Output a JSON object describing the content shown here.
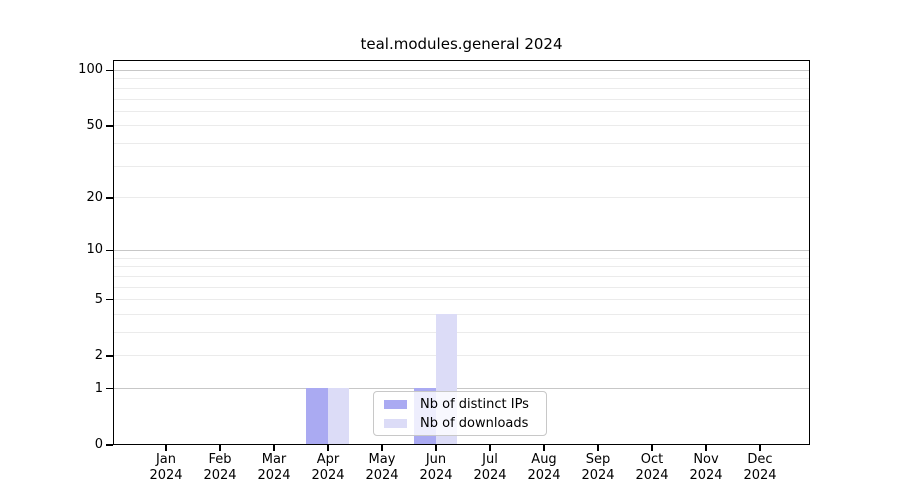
{
  "chart_data": {
    "type": "bar",
    "title": "teal.modules.general 2024",
    "categories": [
      "Jan 2024",
      "Feb 2024",
      "Mar 2024",
      "Apr 2024",
      "May 2024",
      "Jun 2024",
      "Jul 2024",
      "Aug 2024",
      "Sep 2024",
      "Oct 2024",
      "Nov 2024",
      "Dec 2024"
    ],
    "x_months": [
      "Jan",
      "Feb",
      "Mar",
      "Apr",
      "May",
      "Jun",
      "Jul",
      "Aug",
      "Sep",
      "Oct",
      "Nov",
      "Dec"
    ],
    "x_year": "2024",
    "series": [
      {
        "name": "Nb of distinct IPs",
        "key": "distinct-ips",
        "color": "#aaaaf2",
        "values": [
          0,
          0,
          0,
          1,
          0,
          1,
          0,
          0,
          0,
          0,
          0,
          0
        ]
      },
      {
        "name": "Nb of downloads",
        "key": "downloads",
        "color": "#dcdcf7",
        "values": [
          0,
          0,
          0,
          1,
          0,
          4,
          0,
          0,
          0,
          0,
          0,
          0
        ]
      }
    ],
    "yaxis": {
      "scale": "log1p",
      "tick_values": [
        0,
        1,
        2,
        5,
        10,
        20,
        50,
        100
      ],
      "range": [
        0,
        100
      ]
    },
    "grid": {
      "minor_values": [
        2,
        3,
        4,
        5,
        6,
        7,
        8,
        9,
        20,
        30,
        40,
        50,
        60,
        70,
        80,
        90
      ],
      "major_values": [
        1,
        10,
        100
      ],
      "minor_color": "#ebebeb",
      "major_color": "#c7c7c7"
    },
    "legend": {
      "position": "lower-center",
      "entries": [
        "Nb of distinct IPs",
        "Nb of downloads"
      ]
    },
    "colors": {
      "spine": "#000000",
      "legend_border": "#c8c8c8",
      "background": "#ffffff"
    }
  }
}
